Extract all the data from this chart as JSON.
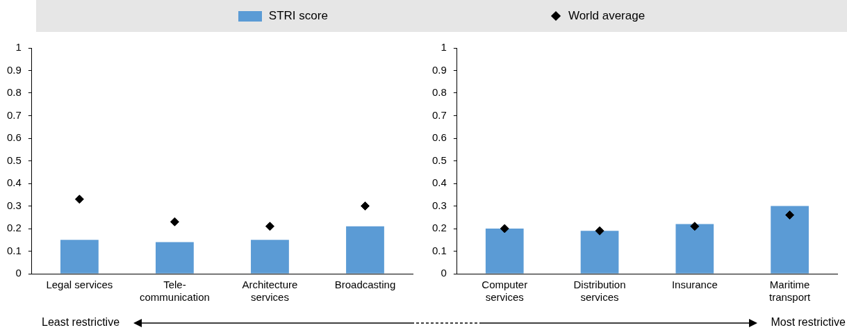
{
  "chart_data": [
    {
      "type": "bar",
      "categories": [
        "Legal services",
        "Tele-communication",
        "Architecture services",
        "Broadcasting"
      ],
      "series": [
        {
          "name": "STRI score",
          "color": "#5b9bd5",
          "values": [
            0.15,
            0.14,
            0.15,
            0.21
          ]
        },
        {
          "name": "World average",
          "type": "scatter",
          "color": "#000000",
          "x": [
            "Legal services",
            "Tele-communication",
            "Architecture services",
            "Broadcasting"
          ],
          "values": [
            0.33,
            0.23,
            0.21,
            0.3
          ]
        }
      ],
      "ylim": [
        0,
        1
      ],
      "yticks": [
        0,
        0.1,
        0.2,
        0.3,
        0.4,
        0.5,
        0.6,
        0.7,
        0.8,
        0.9,
        1
      ],
      "grid": false,
      "legend": "top",
      "marker": "diamond",
      "annotations": [
        "Least restrictive",
        "Most restrictive"
      ]
    },
    {
      "type": "bar",
      "categories": [
        "Computer services",
        "Distribution services",
        "Insurance",
        "Maritime transport"
      ],
      "series": [
        {
          "color": "#5b9bd5",
          "values": [
            0.2,
            0.19,
            0.22,
            0.3
          ]
        },
        {
          "type": "scatter",
          "color": "#000000",
          "x": [
            "Computer services",
            "Distribution services",
            "Insurance",
            "Maritime transport"
          ],
          "values": [
            0.2,
            0.19,
            0.21,
            0.26
          ]
        }
      ],
      "ylim": [
        0,
        1
      ],
      "yticks": [
        0,
        0.1,
        0.2,
        0.3,
        0.4,
        0.5,
        0.6,
        0.7,
        0.8,
        0.9,
        1
      ],
      "grid": false,
      "marker": "diamond"
    }
  ]
}
